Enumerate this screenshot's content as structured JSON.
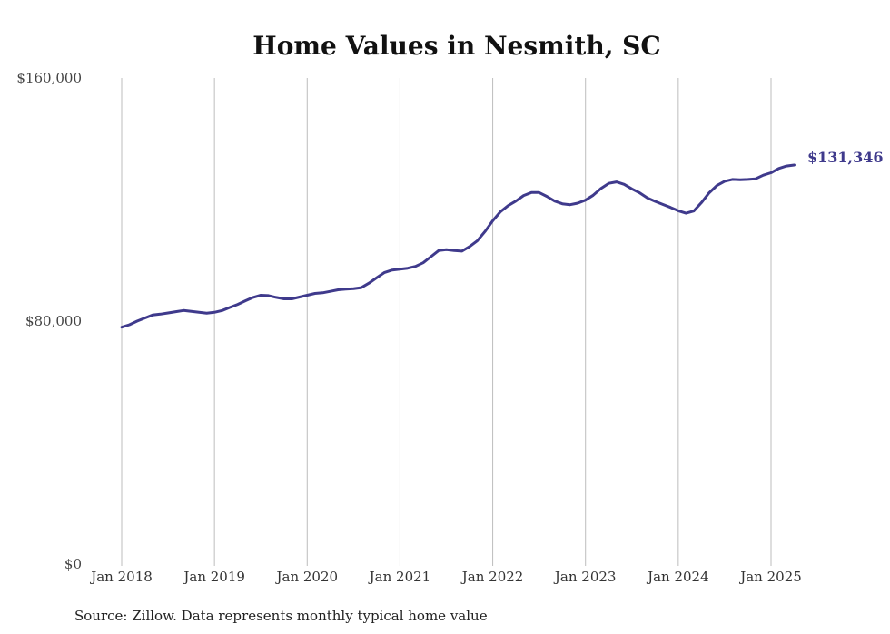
{
  "chart_data": {
    "type": "line",
    "title": "Home Values in Nesmith, SC",
    "source": "Source: Zillow. Data represents monthly typical home value",
    "ylim": [
      0,
      160000
    ],
    "yticks": [
      {
        "value": 0,
        "label": "$0"
      },
      {
        "value": 80000,
        "label": "$80,000"
      },
      {
        "value": 160000,
        "label": "$160,000"
      }
    ],
    "xticks": [
      {
        "value": "2018-01",
        "label": "Jan 2018"
      },
      {
        "value": "2019-01",
        "label": "Jan 2019"
      },
      {
        "value": "2020-01",
        "label": "Jan 2020"
      },
      {
        "value": "2021-01",
        "label": "Jan 2021"
      },
      {
        "value": "2022-01",
        "label": "Jan 2022"
      },
      {
        "value": "2023-01",
        "label": "Jan 2023"
      },
      {
        "value": "2024-01",
        "label": "Jan 2024"
      },
      {
        "value": "2025-01",
        "label": "Jan 2025"
      }
    ],
    "grid": "vertical",
    "line_color": "#3f3a8c",
    "end_label": "$131,346",
    "series": [
      {
        "points": [
          [
            "2018-01",
            78000
          ],
          [
            "2018-02",
            78800
          ],
          [
            "2018-03",
            80000
          ],
          [
            "2018-04",
            81000
          ],
          [
            "2018-05",
            82000
          ],
          [
            "2018-06",
            82300
          ],
          [
            "2018-07",
            82700
          ],
          [
            "2018-08",
            83100
          ],
          [
            "2018-09",
            83500
          ],
          [
            "2018-10",
            83200
          ],
          [
            "2018-11",
            82900
          ],
          [
            "2018-12",
            82600
          ],
          [
            "2019-01",
            82900
          ],
          [
            "2019-02",
            83500
          ],
          [
            "2019-03",
            84500
          ],
          [
            "2019-04",
            85500
          ],
          [
            "2019-05",
            86700
          ],
          [
            "2019-06",
            87800
          ],
          [
            "2019-07",
            88500
          ],
          [
            "2019-08",
            88400
          ],
          [
            "2019-09",
            87800
          ],
          [
            "2019-10",
            87300
          ],
          [
            "2019-11",
            87300
          ],
          [
            "2019-12",
            87900
          ],
          [
            "2020-01",
            88500
          ],
          [
            "2020-02",
            89100
          ],
          [
            "2020-03",
            89300
          ],
          [
            "2020-04",
            89800
          ],
          [
            "2020-05",
            90300
          ],
          [
            "2020-06",
            90500
          ],
          [
            "2020-07",
            90700
          ],
          [
            "2020-08",
            91000
          ],
          [
            "2020-09",
            92500
          ],
          [
            "2020-10",
            94300
          ],
          [
            "2020-11",
            96000
          ],
          [
            "2020-12",
            96800
          ],
          [
            "2021-01",
            97100
          ],
          [
            "2021-02",
            97400
          ],
          [
            "2021-03",
            98000
          ],
          [
            "2021-04",
            99200
          ],
          [
            "2021-05",
            101200
          ],
          [
            "2021-06",
            103200
          ],
          [
            "2021-07",
            103500
          ],
          [
            "2021-08",
            103200
          ],
          [
            "2021-09",
            103000
          ],
          [
            "2021-10",
            104500
          ],
          [
            "2021-11",
            106400
          ],
          [
            "2021-12",
            109500
          ],
          [
            "2022-01",
            113000
          ],
          [
            "2022-02",
            116000
          ],
          [
            "2022-03",
            118000
          ],
          [
            "2022-04",
            119500
          ],
          [
            "2022-05",
            121300
          ],
          [
            "2022-06",
            122300
          ],
          [
            "2022-07",
            122300
          ],
          [
            "2022-08",
            121000
          ],
          [
            "2022-09",
            119500
          ],
          [
            "2022-10",
            118600
          ],
          [
            "2022-11",
            118300
          ],
          [
            "2022-12",
            118800
          ],
          [
            "2023-01",
            119800
          ],
          [
            "2023-02",
            121400
          ],
          [
            "2023-03",
            123600
          ],
          [
            "2023-04",
            125300
          ],
          [
            "2023-05",
            125800
          ],
          [
            "2023-06",
            125000
          ],
          [
            "2023-07",
            123500
          ],
          [
            "2023-08",
            122200
          ],
          [
            "2023-09",
            120500
          ],
          [
            "2023-10",
            119400
          ],
          [
            "2023-11",
            118400
          ],
          [
            "2023-12",
            117400
          ],
          [
            "2024-01",
            116300
          ],
          [
            "2024-02",
            115500
          ],
          [
            "2024-03",
            116200
          ],
          [
            "2024-04",
            119000
          ],
          [
            "2024-05",
            122200
          ],
          [
            "2024-06",
            124600
          ],
          [
            "2024-07",
            126000
          ],
          [
            "2024-08",
            126600
          ],
          [
            "2024-09",
            126500
          ],
          [
            "2024-10",
            126600
          ],
          [
            "2024-11",
            126800
          ],
          [
            "2024-12",
            128000
          ],
          [
            "2025-01",
            128800
          ],
          [
            "2025-02",
            130200
          ],
          [
            "2025-03",
            131000
          ],
          [
            "2025-04",
            131346
          ]
        ]
      }
    ]
  }
}
